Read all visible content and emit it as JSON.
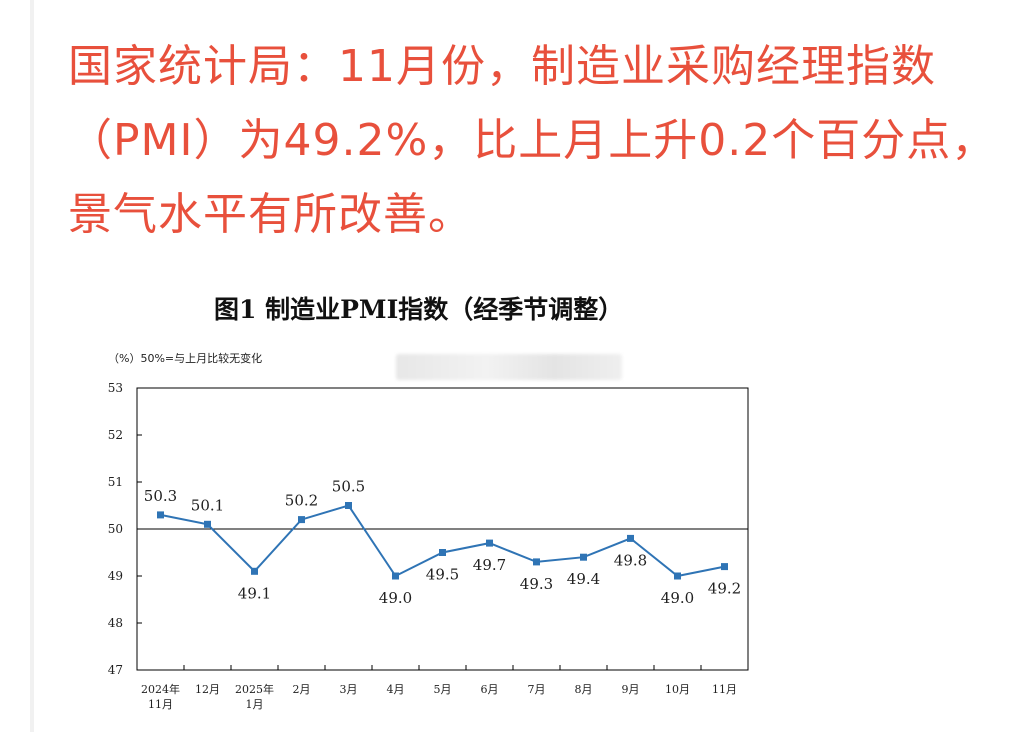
{
  "headline": {
    "lines": [
      "国家统计局：11月份，制造业采购经理指数",
      "（PMI）为49.2%，比上月上升0.2个百分点，",
      "景气水平有所改善。"
    ]
  },
  "colors": {
    "headline": "#e8503c",
    "series": "#2f74b5",
    "axis": "#000000"
  },
  "chart_data": {
    "type": "line",
    "title": "图1  制造业PMI指数（经季节调整）",
    "unit_note": "（%）50%=与上月比较无变化",
    "ylim": [
      47,
      53
    ],
    "yticks": [
      "53",
      "52",
      "51",
      "50",
      "49",
      "48",
      "47"
    ],
    "reference_line": 50,
    "grid": false,
    "categories": [
      [
        "2024年",
        "11月"
      ],
      [
        "12月"
      ],
      [
        "2025年",
        "1月"
      ],
      [
        "2月"
      ],
      [
        "3月"
      ],
      [
        "4月"
      ],
      [
        "5月"
      ],
      [
        "6月"
      ],
      [
        "7月"
      ],
      [
        "8月"
      ],
      [
        "9月"
      ],
      [
        "10月"
      ],
      [
        "11月"
      ]
    ],
    "values": [
      50.3,
      50.1,
      49.1,
      50.2,
      50.5,
      49.0,
      49.5,
      49.7,
      49.3,
      49.4,
      49.8,
      49.0,
      49.2
    ],
    "labels": [
      "50.3",
      "50.1",
      "49.1",
      "50.2",
      "50.5",
      "49.0",
      "49.5",
      "49.7",
      "49.3",
      "49.4",
      "49.8",
      "49.0",
      "49.2"
    ],
    "label_side": [
      "above",
      "above",
      "below",
      "above",
      "above",
      "below",
      "below",
      "below",
      "below",
      "below",
      "below",
      "below",
      "below"
    ]
  }
}
